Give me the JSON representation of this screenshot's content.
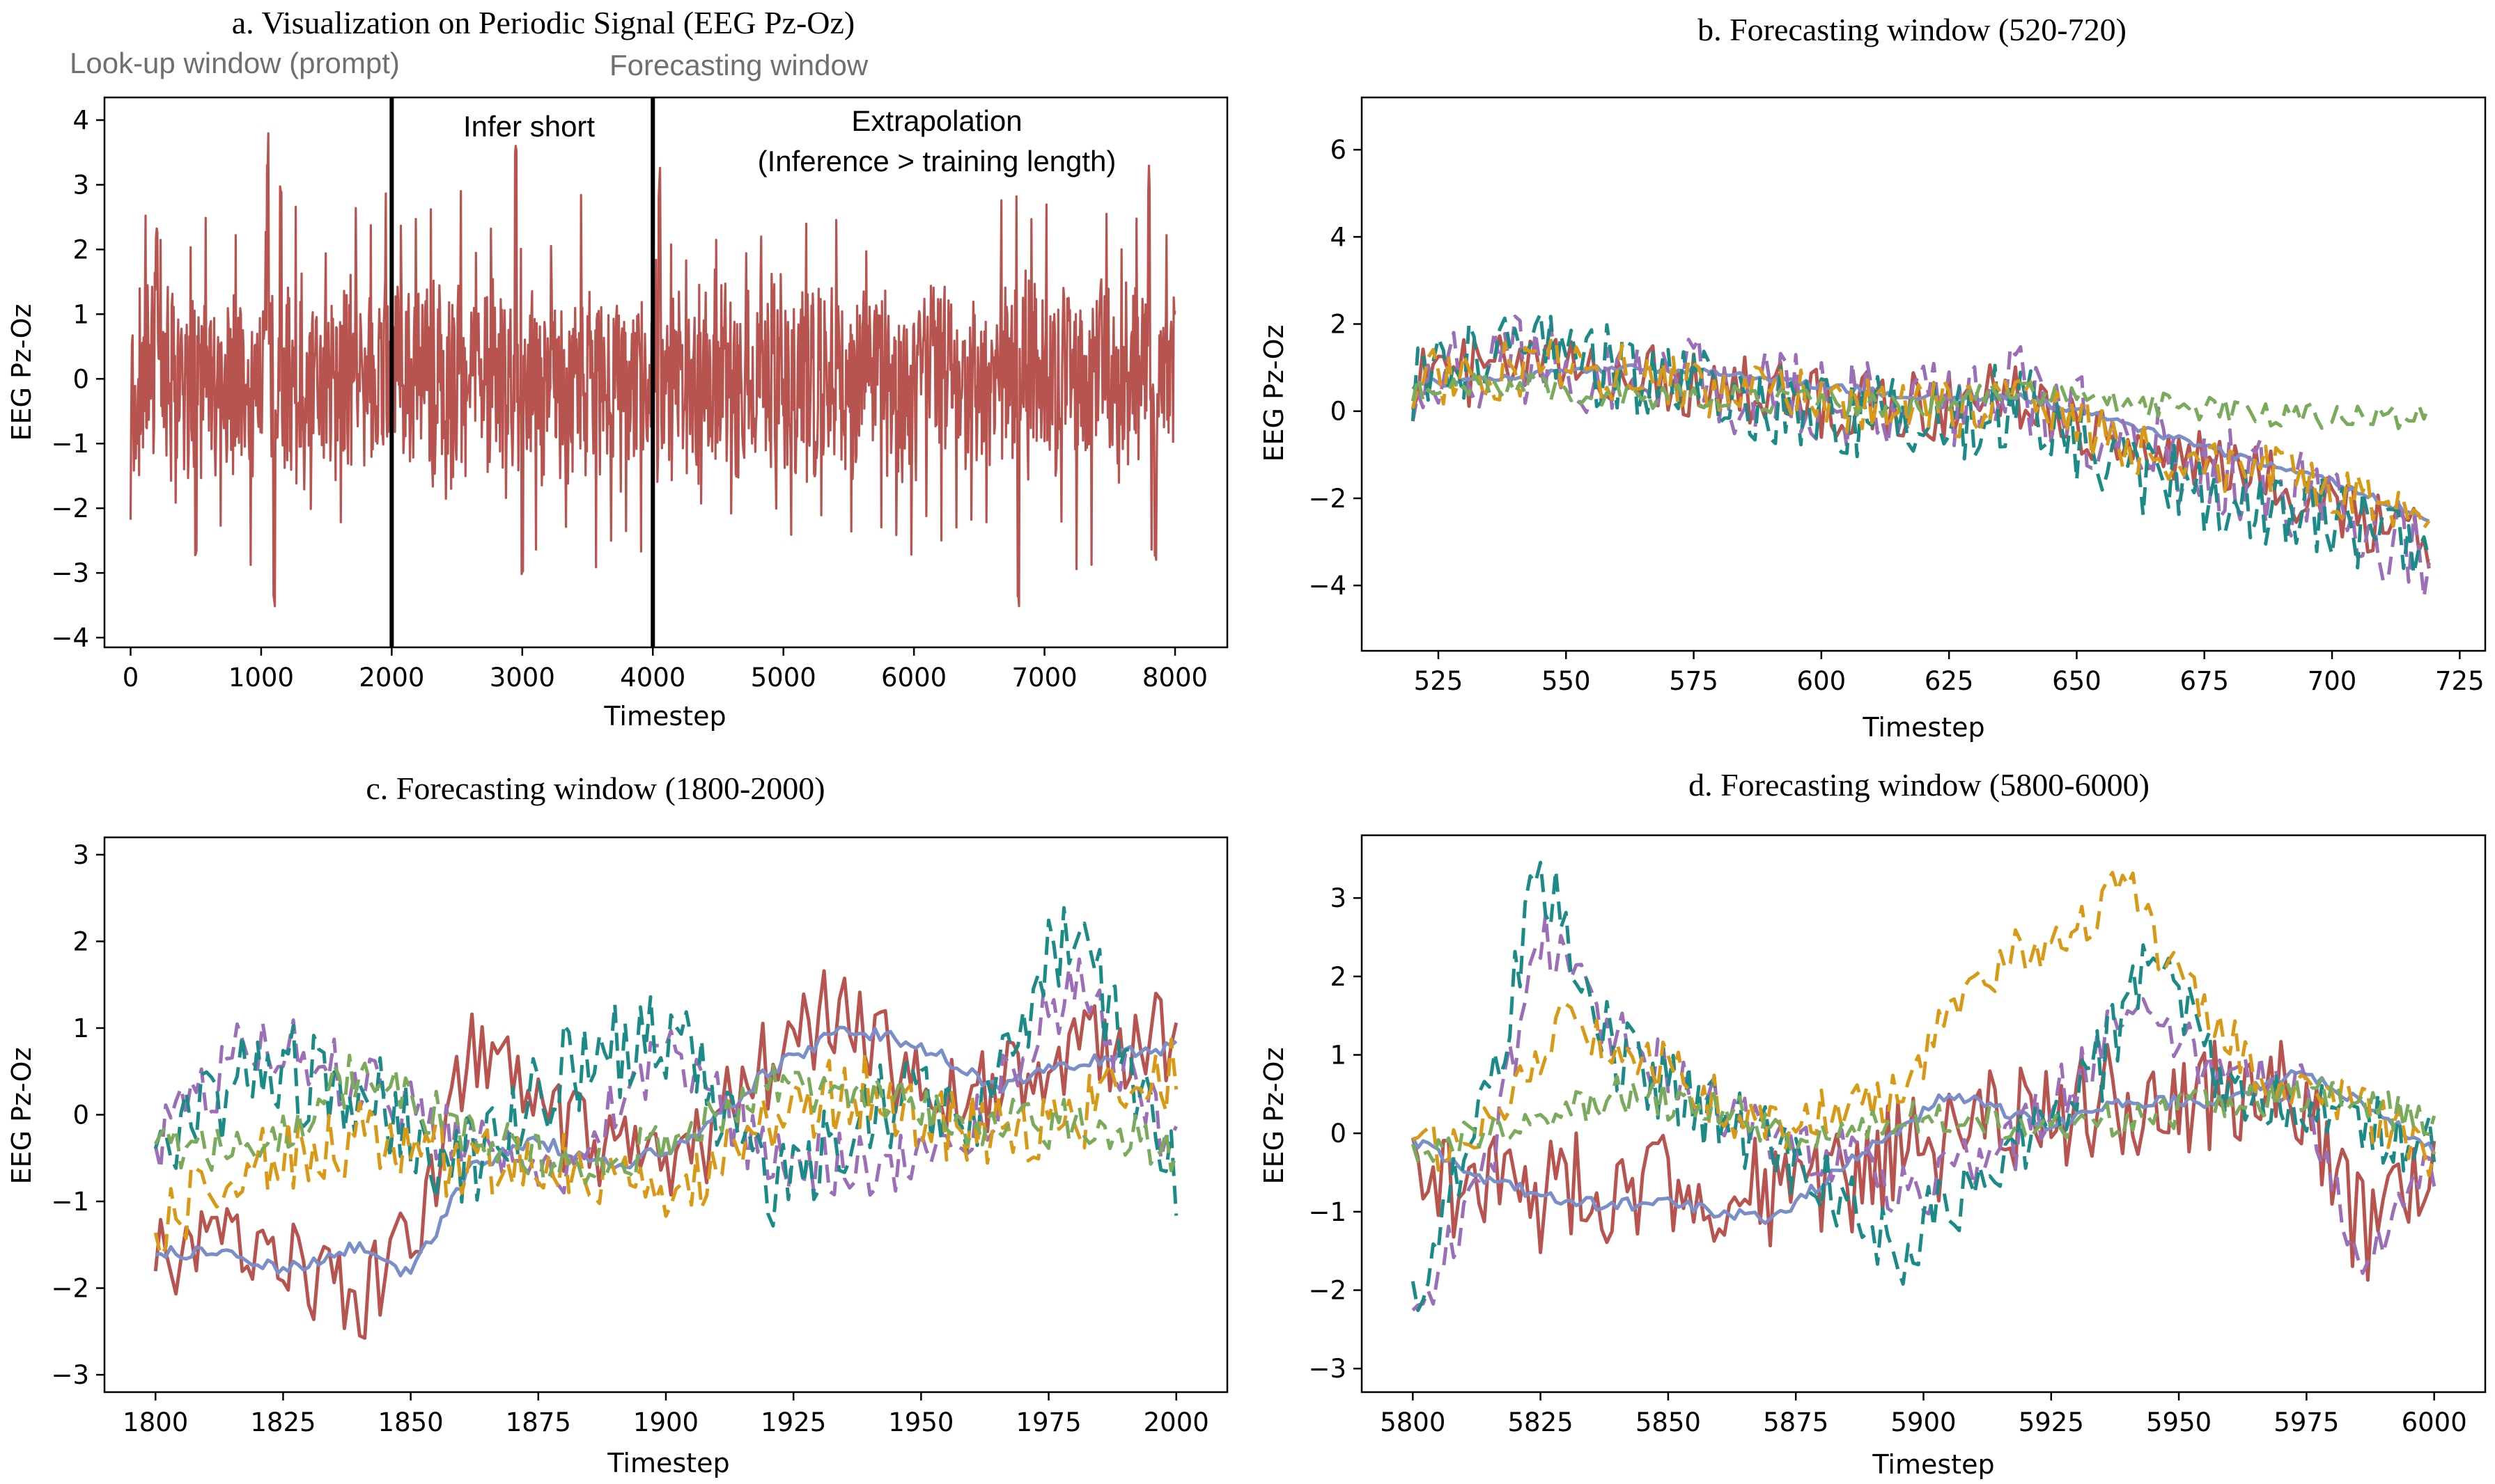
{
  "colors": {
    "red": "#b85450",
    "blue": "#7a8fc9",
    "purple": "#9a6fb8",
    "teal": "#1c8a86",
    "orange": "#d89a16",
    "green": "#7aab5c"
  },
  "chart_data": [
    {
      "id": "a",
      "type": "line",
      "title": "a. Visualization on Periodic Signal (EEG Pz-Oz)",
      "xlabel": "Timestep",
      "ylabel": "EEG Pz-Oz",
      "xlim": [
        -200,
        8400
      ],
      "ylim": [
        -4.15,
        4.35
      ],
      "xticks": [
        0,
        1000,
        2000,
        3000,
        4000,
        5000,
        6000,
        7000,
        8000
      ],
      "yticks": [
        -4,
        -3,
        -2,
        -1,
        0,
        1,
        2,
        3,
        4
      ],
      "grid": false,
      "vlines": [
        2000,
        4000
      ],
      "annotations": {
        "lookup": "Look-up window (prompt)",
        "forecasting": "Forecasting window",
        "infer_short": "Infer short",
        "extrapolation": "Extrapolation",
        "extrapolation_note": "(Inference > training length)"
      },
      "series": [
        {
          "color_key": "red",
          "style": "solid",
          "kind": "dense",
          "x_range": [
            0,
            8000
          ],
          "envelope": 1.8,
          "peaks_up": [
            [
              200,
              2.4
            ],
            [
              1050,
              3.8
            ],
            [
              1150,
              3.3
            ],
            [
              2950,
              3.7
            ],
            [
              4050,
              3.3
            ],
            [
              7800,
              3.4
            ]
          ],
          "peaks_down": [
            [
              1100,
              -3.7
            ],
            [
              3000,
              -3.5
            ],
            [
              6800,
              -3.6
            ],
            [
              7850,
              -2.9
            ],
            [
              500,
              -2.9
            ]
          ]
        }
      ]
    },
    {
      "id": "b",
      "type": "line",
      "title": "b. Forecasting window (520-720)",
      "xlabel": "Timestep",
      "ylabel": "EEG Pz-Oz",
      "xlim": [
        510,
        730
      ],
      "ylim": [
        -5.5,
        7.2
      ],
      "xticks": [
        525,
        550,
        575,
        600,
        625,
        650,
        675,
        700,
        725
      ],
      "yticks": [
        -4,
        -2,
        0,
        2,
        4,
        6
      ],
      "grid": false,
      "series": [
        {
          "color_key": "red",
          "style": "solid",
          "x": [
            520,
            540,
            560,
            580,
            600,
            620,
            640,
            660,
            680,
            700,
            719
          ],
          "y": [
            0.8,
            1.0,
            0.9,
            0.6,
            0.2,
            0.1,
            0.4,
            -0.8,
            -1.4,
            -2.0,
            -3.2
          ],
          "noise": 0.8
        },
        {
          "color_key": "blue",
          "style": "solid",
          "x": [
            520,
            540,
            560,
            580,
            600,
            620,
            640,
            660,
            680,
            700,
            719
          ],
          "y": [
            0.6,
            0.8,
            1.0,
            0.9,
            0.6,
            0.3,
            0.3,
            -0.3,
            -1.0,
            -1.6,
            -2.5
          ],
          "noise": 0.1
        },
        {
          "color_key": "purple",
          "style": "dashed",
          "x": [
            520,
            540,
            560,
            580,
            600,
            620,
            640,
            660,
            680,
            700,
            719
          ],
          "y": [
            0.8,
            1.2,
            1.0,
            0.5,
            0.2,
            0.0,
            0.6,
            -0.8,
            -1.5,
            -2.2,
            -3.5
          ],
          "noise": 1.1
        },
        {
          "color_key": "teal",
          "style": "dashed",
          "x": [
            520,
            540,
            560,
            580,
            600,
            620,
            640,
            660,
            680,
            700,
            719
          ],
          "y": [
            0.7,
            1.5,
            1.0,
            0.4,
            0.0,
            -0.3,
            0.2,
            -1.5,
            -2.0,
            -2.3,
            -3.7
          ],
          "noise": 1.0
        },
        {
          "color_key": "orange",
          "style": "dashed",
          "x": [
            520,
            540,
            560,
            580,
            600,
            620,
            640,
            660,
            680,
            700,
            719
          ],
          "y": [
            0.7,
            1.0,
            0.9,
            0.5,
            0.2,
            0.0,
            0.3,
            -0.8,
            -1.2,
            -1.8,
            -2.9
          ],
          "noise": 0.7
        },
        {
          "color_key": "green",
          "style": "dashed",
          "x": [
            520,
            540,
            560,
            580,
            600,
            620,
            640,
            660,
            680,
            700,
            719
          ],
          "y": [
            0.5,
            0.6,
            0.4,
            0.3,
            0.2,
            0.1,
            0.5,
            0.2,
            0.0,
            -0.1,
            -0.1
          ],
          "noise": 0.3
        }
      ]
    },
    {
      "id": "c",
      "type": "line",
      "title": "c. Forecasting window (1800-2000)",
      "xlabel": "Timestep",
      "ylabel": "EEG Pz-Oz",
      "xlim": [
        1790,
        2010
      ],
      "ylim": [
        -3.2,
        3.2
      ],
      "xticks": [
        1800,
        1825,
        1850,
        1875,
        1900,
        1925,
        1950,
        1975,
        2000
      ],
      "yticks": [
        -3,
        -2,
        -1,
        0,
        1,
        2,
        3
      ],
      "grid": false,
      "series": [
        {
          "color_key": "red",
          "style": "solid",
          "x": [
            1800,
            1820,
            1840,
            1850,
            1862,
            1880,
            1900,
            1920,
            1935,
            1950,
            1970,
            1985,
            2000
          ],
          "y": [
            -1.7,
            -1.4,
            -2.2,
            -1.5,
            0.8,
            -0.2,
            -0.8,
            0.6,
            1.3,
            0.2,
            0.4,
            0.8,
            0.9
          ],
          "noise": 0.55
        },
        {
          "color_key": "blue",
          "style": "solid",
          "x": [
            1800,
            1815,
            1825,
            1840,
            1850,
            1862,
            1875,
            1890,
            1905,
            1920,
            1935,
            1950,
            1965,
            1980,
            2000
          ],
          "y": [
            -1.6,
            -1.6,
            -1.8,
            -1.5,
            -1.85,
            -0.6,
            -0.3,
            -0.6,
            -0.3,
            0.5,
            1.0,
            0.8,
            0.3,
            0.6,
            0.8
          ],
          "noise": 0.08
        },
        {
          "color_key": "purple",
          "style": "dashed",
          "x": [
            1800,
            1820,
            1840,
            1860,
            1880,
            1900,
            1920,
            1940,
            1960,
            1980,
            2000
          ],
          "y": [
            -0.3,
            0.9,
            0.4,
            -0.3,
            -0.5,
            0.7,
            -0.5,
            -0.6,
            -0.2,
            1.6,
            -0.5
          ],
          "noise": 0.4
        },
        {
          "color_key": "teal",
          "style": "dashed",
          "x": [
            1800,
            1820,
            1840,
            1860,
            1880,
            1900,
            1920,
            1940,
            1960,
            1980,
            2000
          ],
          "y": [
            -0.3,
            0.5,
            0.3,
            -0.6,
            0.5,
            1.0,
            -0.9,
            0.1,
            0.0,
            2.2,
            -0.7
          ],
          "noise": 0.6
        },
        {
          "color_key": "orange",
          "style": "dashed",
          "x": [
            1800,
            1820,
            1840,
            1860,
            1880,
            1900,
            1920,
            1940,
            1960,
            1980,
            2000
          ],
          "y": [
            -1.3,
            -0.5,
            -0.3,
            -0.6,
            -0.6,
            -1.1,
            0.0,
            0.3,
            -0.2,
            0.0,
            0.5
          ],
          "noise": 0.45
        },
        {
          "color_key": "green",
          "style": "dashed",
          "x": [
            1800,
            1820,
            1840,
            1860,
            1880,
            1900,
            1920,
            1940,
            1960,
            1980,
            2000
          ],
          "y": [
            -0.3,
            -0.4,
            0.5,
            -0.2,
            -0.6,
            -0.4,
            0.3,
            0.3,
            -0.1,
            -0.1,
            -0.4
          ],
          "noise": 0.3
        }
      ]
    },
    {
      "id": "d",
      "type": "line",
      "title": "d. Forecasting window (5800-6000)",
      "xlabel": "Timestep",
      "ylabel": "EEG Pz-Oz",
      "xlim": [
        5790,
        6010
      ],
      "ylim": [
        -3.3,
        3.8
      ],
      "xticks": [
        5800,
        5825,
        5850,
        5875,
        5900,
        5925,
        5950,
        5975,
        6000
      ],
      "yticks": [
        -3,
        -2,
        -1,
        0,
        1,
        2,
        3
      ],
      "grid": false,
      "series": [
        {
          "color_key": "red",
          "style": "solid",
          "x": [
            5800,
            5825,
            5850,
            5875,
            5900,
            5925,
            5950,
            5975,
            5985,
            6000
          ],
          "y": [
            -0.5,
            -0.8,
            -0.6,
            -0.9,
            -0.2,
            0.3,
            0.5,
            0.4,
            -1.2,
            -0.8
          ],
          "noise": 0.75
        },
        {
          "color_key": "blue",
          "style": "solid",
          "x": [
            5800,
            5815,
            5830,
            5850,
            5870,
            5885,
            5905,
            5925,
            5940,
            5955,
            5975,
            5990,
            6000
          ],
          "y": [
            -0.1,
            -0.6,
            -0.9,
            -0.9,
            -1.1,
            -0.4,
            0.5,
            0.1,
            0.4,
            0.4,
            0.8,
            0.2,
            -0.2
          ],
          "noise": 0.08
        },
        {
          "color_key": "purple",
          "style": "dashed",
          "x": [
            5800,
            5815,
            5825,
            5840,
            5860,
            5880,
            5900,
            5920,
            5940,
            5960,
            5975,
            5985,
            6000
          ],
          "y": [
            -2.5,
            -0.5,
            2.6,
            1.2,
            0.3,
            -0.2,
            -0.8,
            0.0,
            1.5,
            0.8,
            0.5,
            -1.8,
            -0.5
          ],
          "noise": 0.4
        },
        {
          "color_key": "teal",
          "style": "dashed",
          "x": [
            5800,
            5815,
            5825,
            5840,
            5860,
            5880,
            5895,
            5915,
            5935,
            5945,
            5960,
            5980,
            6000
          ],
          "y": [
            -2.2,
            0.5,
            3.4,
            1.0,
            0.2,
            -0.5,
            -1.5,
            -0.3,
            0.9,
            2.5,
            0.4,
            0.3,
            -0.3
          ],
          "noise": 0.5
        },
        {
          "color_key": "orange",
          "style": "dashed",
          "x": [
            5800,
            5815,
            5830,
            5850,
            5870,
            5895,
            5910,
            5925,
            5940,
            5950,
            5965,
            5985,
            6000
          ],
          "y": [
            -0.3,
            0.2,
            1.5,
            0.8,
            0.0,
            0.5,
            2.0,
            2.5,
            3.1,
            2.0,
            0.8,
            0.3,
            -0.3
          ],
          "noise": 0.35
        },
        {
          "color_key": "green",
          "style": "dashed",
          "x": [
            5800,
            5820,
            5840,
            5860,
            5880,
            5900,
            5920,
            5940,
            5960,
            5980,
            6000
          ],
          "y": [
            -0.3,
            0.1,
            0.5,
            0.3,
            -0.1,
            0.2,
            0.1,
            0.2,
            0.4,
            0.5,
            0.1
          ],
          "noise": 0.25
        }
      ]
    }
  ]
}
